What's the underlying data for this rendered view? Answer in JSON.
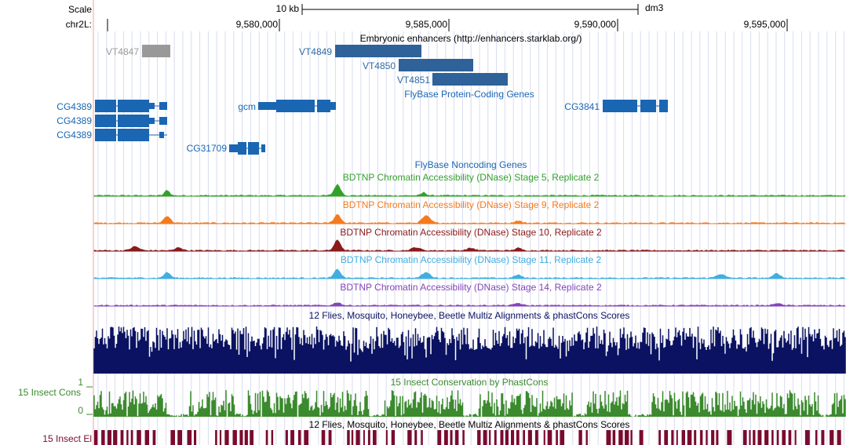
{
  "scale": {
    "label": "Scale",
    "bar_label": "10 kb",
    "assembly": "dm3"
  },
  "position": {
    "chrom_label": "chr2L:",
    "ticks": [
      "9,580,000",
      "9,585,000",
      "9,590,000",
      "9,595,000"
    ]
  },
  "tracks": {
    "enhancers": {
      "title": "Embryonic enhancers (http://enhancers.starklab.org/)",
      "items": [
        "VT4847",
        "VT4849",
        "VT4850",
        "VT4851"
      ]
    },
    "coding": {
      "title": "FlyBase Protein-Coding Genes",
      "genes": [
        "CG4389",
        "CG4389",
        "CG4389",
        "gcm",
        "CG31709",
        "CG3841"
      ]
    },
    "noncoding": {
      "title": "FlyBase Noncoding Genes"
    },
    "dnase": [
      {
        "title": "BDTNP Chromatin Accessibility (DNase) Stage 5, Replicate 2",
        "color": "#33a02c"
      },
      {
        "title": "BDTNP Chromatin Accessibility (DNase) Stage 9, Replicate 2",
        "color": "#f57a1d"
      },
      {
        "title": "BDTNP Chromatin Accessibility (DNase) Stage 10, Replicate 2",
        "color": "#8b1a1a"
      },
      {
        "title": "BDTNP Chromatin Accessibility (DNase) Stage 11, Replicate 2",
        "color": "#42aee0"
      },
      {
        "title": "BDTNP Chromatin Accessibility (DNase) Stage 14, Replicate 2",
        "color": "#8545b8"
      }
    ],
    "multiz": {
      "title": "12 Flies, Mosquito, Honeybee, Beetle Multiz Alignments & phastCons Scores",
      "color": "#0a1261"
    },
    "cons": {
      "title": "15 Insect Conservation by PhastCons",
      "side_label": "15 Insect Cons",
      "ymax": "1",
      "ymin": "0",
      "color": "#3b8a2e"
    },
    "elements": {
      "title": "12 Flies, Mosquito, Honeybee, Beetle Multiz Alignments & phastCons Scores",
      "side_label": "15 Insect El",
      "color": "#7a0a2e"
    }
  }
}
